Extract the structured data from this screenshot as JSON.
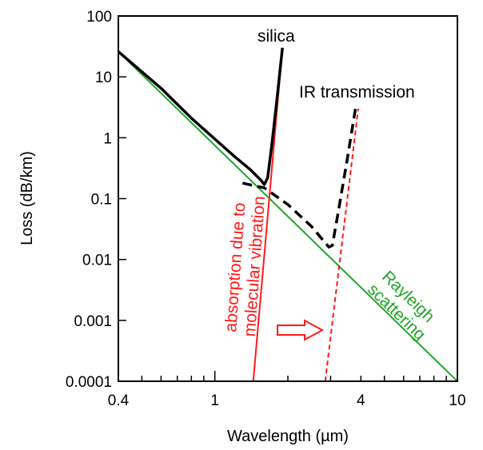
{
  "chart_data": {
    "type": "line",
    "title": "",
    "xlabel": "Wavelength  (µm)",
    "ylabel": "Loss  (dB/km)",
    "x_scale": "log",
    "y_scale": "log",
    "xlim": [
      0.4,
      10
    ],
    "ylim": [
      0.0001,
      100
    ],
    "grid": false,
    "x_ticks": [
      {
        "value": 0.4,
        "label": "0.4"
      },
      {
        "value": 1,
        "label": "1"
      },
      {
        "value": 4,
        "label": "4"
      },
      {
        "value": 10,
        "label": "10"
      }
    ],
    "y_ticks": [
      {
        "value": 0.0001,
        "label": "0.0001"
      },
      {
        "value": 0.001,
        "label": "0.001"
      },
      {
        "value": 0.01,
        "label": "0.01"
      },
      {
        "value": 0.1,
        "label": "0.1"
      },
      {
        "value": 1,
        "label": "1"
      },
      {
        "value": 10,
        "label": "10"
      },
      {
        "value": 100,
        "label": "100"
      }
    ],
    "series": [
      {
        "key": "silica",
        "color": "#000000",
        "style": "solid",
        "points": [
          [
            0.4,
            26
          ],
          [
            0.6,
            6.5
          ],
          [
            0.8,
            2.1
          ],
          [
            1.0,
            0.95
          ],
          [
            1.2,
            0.5
          ],
          [
            1.4,
            0.3
          ],
          [
            1.55,
            0.2
          ],
          [
            1.6,
            0.17
          ],
          [
            1.65,
            0.22
          ],
          [
            1.72,
            0.8
          ],
          [
            1.8,
            4
          ],
          [
            1.9,
            30
          ]
        ]
      },
      {
        "key": "ir",
        "color": "#000000",
        "style": "dashed",
        "points": [
          [
            1.3,
            0.18
          ],
          [
            1.6,
            0.15
          ],
          [
            2.0,
            0.08
          ],
          [
            2.5,
            0.035
          ],
          [
            2.95,
            0.016
          ],
          [
            3.05,
            0.017
          ],
          [
            3.2,
            0.05
          ],
          [
            3.5,
            0.4
          ],
          [
            3.8,
            3
          ]
        ]
      },
      {
        "key": "rayleigh",
        "color": "#22a52a",
        "style": "solid",
        "points": [
          [
            0.4,
            26
          ],
          [
            10,
            0.0001
          ]
        ]
      },
      {
        "key": "absorption-silica",
        "color": "#ff1a1a",
        "style": "solid",
        "points": [
          [
            1.44,
            0.0001
          ],
          [
            1.9,
            30
          ]
        ]
      },
      {
        "key": "absorption-ir",
        "color": "#ff1a1a",
        "style": "dashed",
        "points": [
          [
            2.85,
            0.0001
          ],
          [
            3.9,
            3
          ]
        ]
      }
    ],
    "annotations": [
      {
        "key": "silica",
        "text": "silica",
        "color": "#000000"
      },
      {
        "key": "ir",
        "text": "IR transmission",
        "color": "#000000"
      },
      {
        "key": "absorption",
        "lines": [
          "absorption due to",
          "molecular vibration"
        ],
        "color": "#ff1a1a"
      },
      {
        "key": "rayleigh",
        "lines": [
          "Rayleigh",
          "scattering"
        ],
        "color": "#22a52a"
      }
    ],
    "arrow": {
      "direction": "right",
      "color": "#ff1a1a"
    }
  }
}
